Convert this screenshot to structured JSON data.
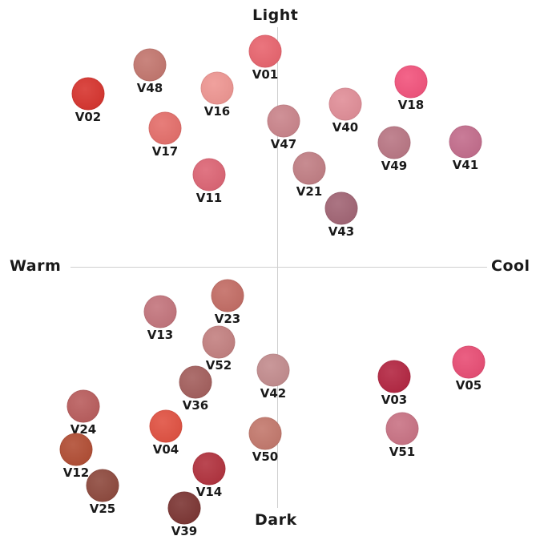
{
  "axes": {
    "top": "Light",
    "bottom": "Dark",
    "left": "Warm",
    "right": "Cool"
  },
  "shades": [
    {
      "label": "V01",
      "color": "#e8626c"
    },
    {
      "label": "V48",
      "color": "#c2746c"
    },
    {
      "label": "V02",
      "color": "#d6302a"
    },
    {
      "label": "V16",
      "color": "#ee9490"
    },
    {
      "label": "V18",
      "color": "#f2507a"
    },
    {
      "label": "V40",
      "color": "#e08c96"
    },
    {
      "label": "V17",
      "color": "#e46c68"
    },
    {
      "label": "V47",
      "color": "#c98289"
    },
    {
      "label": "V49",
      "color": "#b87482"
    },
    {
      "label": "V41",
      "color": "#c26a8a"
    },
    {
      "label": "V11",
      "color": "#dc6272"
    },
    {
      "label": "V21",
      "color": "#c07c82"
    },
    {
      "label": "V43",
      "color": "#a06272"
    },
    {
      "label": "V23",
      "color": "#c26a62"
    },
    {
      "label": "V13",
      "color": "#c2727a"
    },
    {
      "label": "V52",
      "color": "#c27e7e"
    },
    {
      "label": "V42",
      "color": "#c28a8c"
    },
    {
      "label": "V03",
      "color": "#b2223e"
    },
    {
      "label": "V05",
      "color": "#e84a72"
    },
    {
      "label": "V36",
      "color": "#a25c5a"
    },
    {
      "label": "V24",
      "color": "#b85a5a"
    },
    {
      "label": "V04",
      "color": "#e04e3e"
    },
    {
      "label": "V51",
      "color": "#c87082"
    },
    {
      "label": "V50",
      "color": "#c2766a"
    },
    {
      "label": "V12",
      "color": "#b04a30"
    },
    {
      "label": "V14",
      "color": "#b02e3a"
    },
    {
      "label": "V25",
      "color": "#8c463a"
    },
    {
      "label": "V39",
      "color": "#7a3230"
    }
  ]
}
